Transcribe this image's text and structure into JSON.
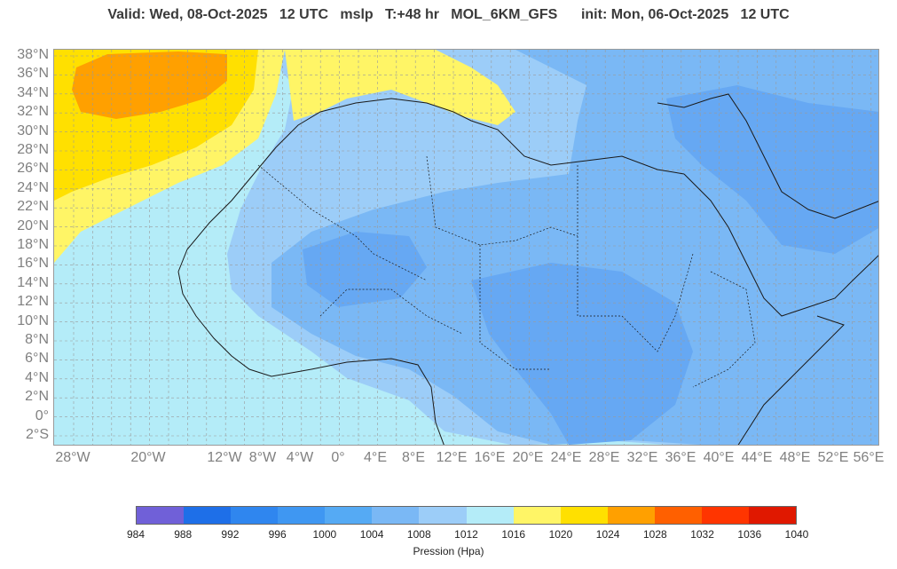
{
  "title": "Valid: Wed, 08-Oct-2025   12 UTC   mslp   T:+48 hr   MOL_6KM_GFS      init: Mon, 06-Oct-2025   12 UTC",
  "map": {
    "lat_labels": [
      "38°N",
      "36°N",
      "34°N",
      "32°N",
      "30°N",
      "28°N",
      "26°N",
      "24°N",
      "22°N",
      "20°N",
      "18°N",
      "16°N",
      "14°N",
      "12°N",
      "10°N",
      "8°N",
      "6°N",
      "4°N",
      "2°N",
      "0°",
      "2°S"
    ],
    "lon_labels": [
      "28°W",
      "20°W",
      "12°W",
      "8°W",
      "4°W",
      "0°",
      "4°E",
      "8°E",
      "12°E",
      "16°E",
      "20°E",
      "24°E",
      "28°E",
      "32°E",
      "36°E",
      "40°E",
      "44°E",
      "48°E",
      "52°E",
      "56°E"
    ]
  },
  "colorbar": {
    "title": "Pression (Hpa)",
    "ticks": [
      "984",
      "988",
      "992",
      "996",
      "1000",
      "1004",
      "1008",
      "1012",
      "1016",
      "1020",
      "1024",
      "1028",
      "1032",
      "1036",
      "1040"
    ],
    "colors": [
      "#7060d8",
      "#1e6fe8",
      "#2f86ef",
      "#3f97f2",
      "#55aaf4",
      "#7ab8f5",
      "#9ccdf8",
      "#b4ecf8",
      "#fff566",
      "#ffe000",
      "#ffa000",
      "#ff6000",
      "#ff3500",
      "#e01800"
    ]
  }
}
